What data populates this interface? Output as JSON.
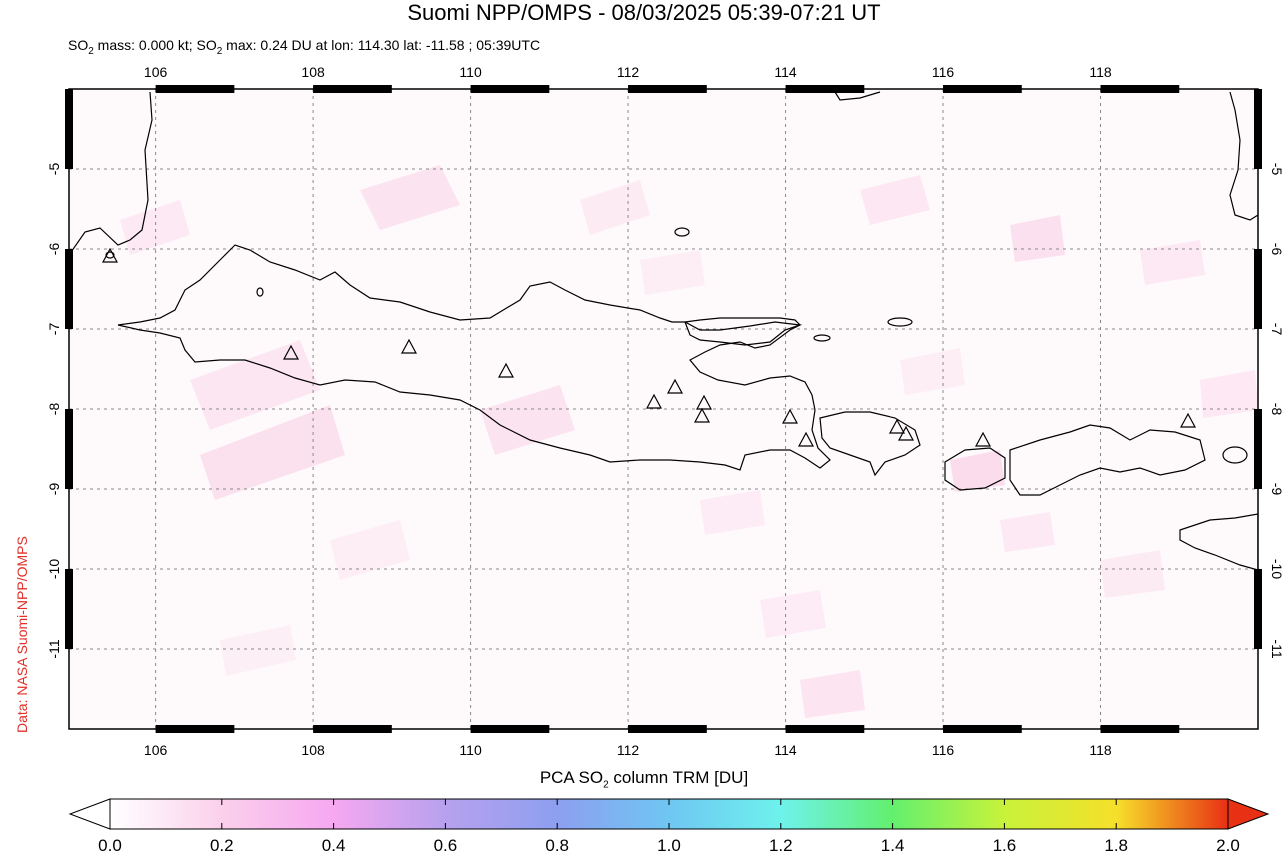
{
  "header": {
    "title": "Suomi NPP/OMPS - 08/03/2025 05:39-07:21 UT",
    "subtitle_pre": "SO",
    "subtitle_sub": "2",
    "subtitle_mid": " mass: 0.000 kt; SO",
    "subtitle_sub2": "2",
    "subtitle_post": " max: 0.24 DU at lon: 114.30 lat: -11.58 ; 05:39UTC"
  },
  "credit": "Data: NASA Suomi-NPP/OMPS",
  "map": {
    "lon_range": [
      104.9,
      120.0
    ],
    "lat_range": [
      -12.0,
      -4.0
    ],
    "lon_ticks": [
      106,
      108,
      110,
      112,
      114,
      116,
      118
    ],
    "lat_ticks": [
      -5,
      -6,
      -7,
      -8,
      -9,
      -10,
      -11
    ],
    "lon_tick_labels": [
      "106",
      "108",
      "110",
      "112",
      "114",
      "116",
      "118"
    ],
    "lat_tick_labels": [
      "-5",
      "-6",
      "-7",
      "-8",
      "-9",
      "-10",
      "-11"
    ],
    "grid": true,
    "volcano_icon": "triangle-volcano-icon"
  },
  "colorbar": {
    "label_pre": "PCA SO",
    "label_sub": "2",
    "label_post": " column TRM [DU]",
    "range": [
      0.0,
      2.0
    ],
    "ticks": [
      "0.0",
      "0.2",
      "0.4",
      "0.6",
      "0.8",
      "1.0",
      "1.2",
      "1.4",
      "1.6",
      "1.8",
      "2.0"
    ],
    "colors": [
      "#ffffff",
      "#fbd0ec",
      "#f6a8f0",
      "#b7a1ee",
      "#8d9ff0",
      "#6fc6f2",
      "#6ef2ec",
      "#63f06e",
      "#c8f23a",
      "#f6e02a",
      "#f28d22",
      "#e83014"
    ]
  }
}
